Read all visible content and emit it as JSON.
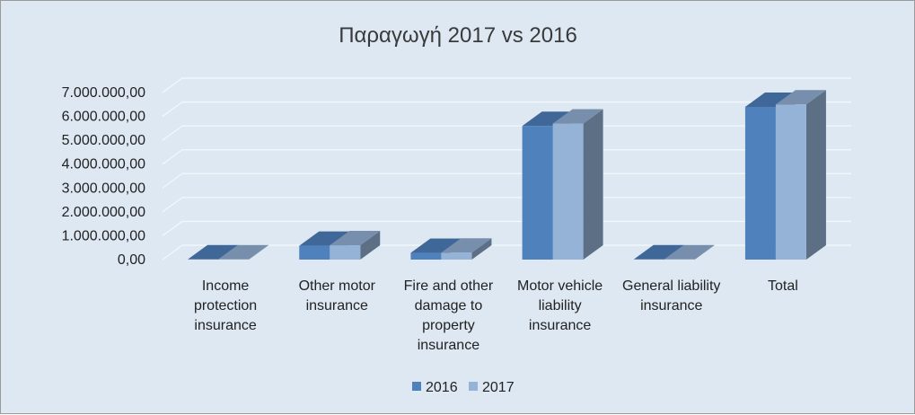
{
  "chart_data": {
    "type": "bar",
    "title": "Παραγωγή 2017 vs 2016",
    "xlabel": "",
    "ylabel": "",
    "categories": [
      "Income protection insurance",
      "Other motor insurance",
      "Fire and other damage to property insurance",
      "Motor vehicle liability insurance",
      "General liability insurance",
      "Total"
    ],
    "category_lines": [
      [
        "Income",
        "protection",
        "insurance"
      ],
      [
        "Other motor",
        "insurance"
      ],
      [
        "Fire and other",
        "damage to",
        "property",
        "insurance"
      ],
      [
        "Motor vehicle",
        "liability",
        "insurance"
      ],
      [
        "General liability",
        "insurance"
      ],
      [
        "Total"
      ]
    ],
    "series": [
      {
        "name": "2016",
        "color": "#4f81bd",
        "values": [
          10000,
          580000,
          280000,
          5600000,
          10000,
          6400000
        ]
      },
      {
        "name": "2017",
        "color": "#95b3d7",
        "values": [
          10000,
          600000,
          290000,
          5700000,
          10000,
          6500000
        ]
      }
    ],
    "ylim": [
      0,
      7000000
    ],
    "y_ticks": [
      "0,00",
      "1.000.000,00",
      "2.000.000,00",
      "3.000.000,00",
      "4.000.000,00",
      "5.000.000,00",
      "6.000.000,00",
      "7.000.000,00"
    ],
    "grid": true,
    "legend_position": "bottom"
  }
}
